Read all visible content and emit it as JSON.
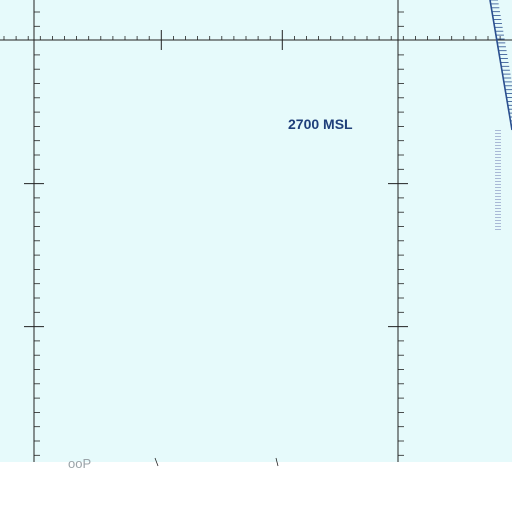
{
  "map": {
    "type": "aeronautical sectional chart fragment",
    "colors": {
      "water_tint": "#e6fafb",
      "blank": "#ffffff",
      "grid_line": "#222222",
      "airspace_label": "#1f3f7a",
      "airspace_boundary": "#2a4f8f"
    },
    "labels": {
      "altitude": "2700 MSL",
      "partial_bottom": "ooP"
    }
  }
}
